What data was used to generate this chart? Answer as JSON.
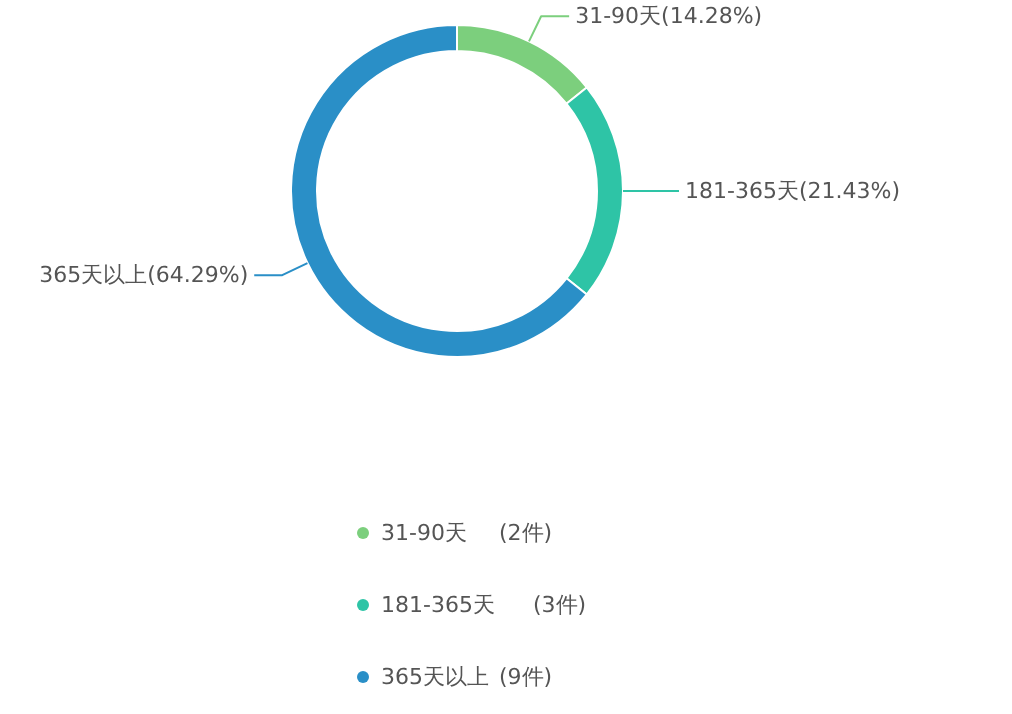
{
  "chart_data": {
    "type": "donut",
    "categories": [
      "31-90天",
      "181-365天",
      "365天以上"
    ],
    "values": [
      14.28,
      21.43,
      64.29
    ],
    "value_labels": [
      "(14.28%)",
      "(21.43%)",
      "(64.29%)"
    ],
    "colors": [
      "#7ccf7d",
      "#2ec4a6",
      "#2a8fc7"
    ],
    "legend": "bottom",
    "annotations": [
      "(2件)",
      "(3件)",
      "(9件)"
    ]
  }
}
